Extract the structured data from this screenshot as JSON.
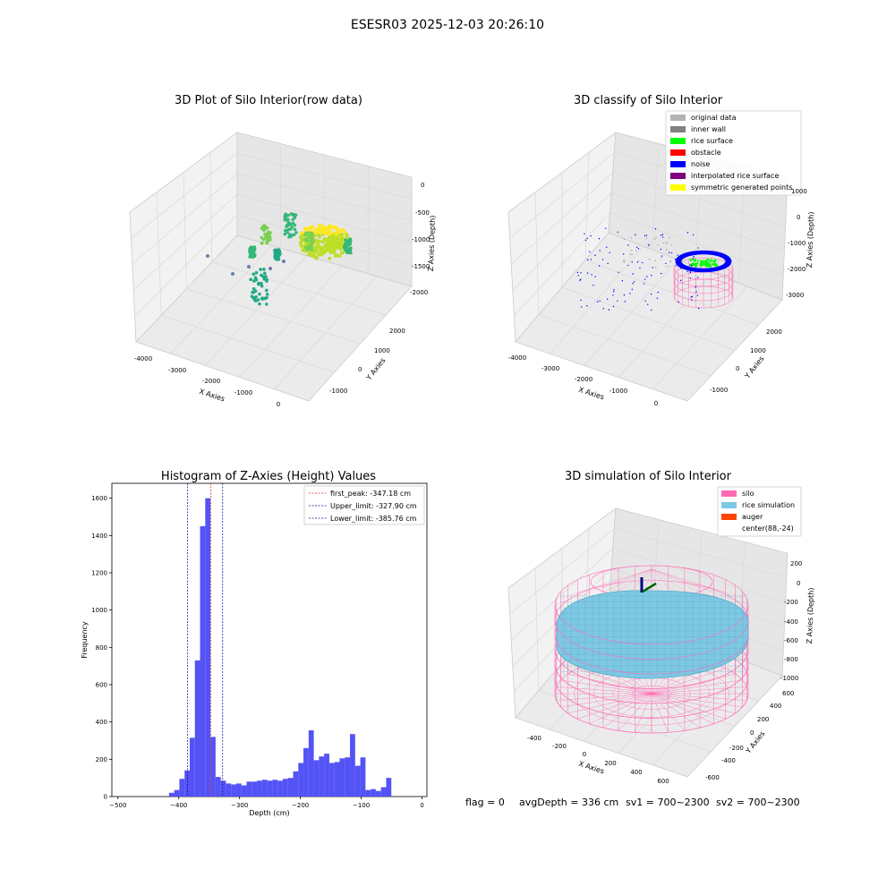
{
  "figure": {
    "suptitle": "ESESR03 2025-12-03 20:26:10",
    "status": {
      "flag": "flag = 0",
      "avg_depth": "avgDepth = 336 cm",
      "sv1": "sv1 = 700~2300",
      "sv2": "sv2 = 700~2300"
    }
  },
  "colors": {
    "hist_bar": "#4a4af5",
    "first_peak": "#e03030",
    "limit_lines": "#1a1aa0",
    "pane": "#f2f2f2",
    "grid": "#d9d9d9",
    "silo": "#ff69b4",
    "rice": "#7ec8e3",
    "auger": "#ff4500"
  },
  "chart_data": [
    {
      "type": "scatter3d",
      "title": "3D Plot of Silo Interior(row data)",
      "xlabel": "X Axies",
      "ylabel": "Y Axies",
      "zlabel": "Z Axies (Depth)",
      "xticks": [
        "-4000",
        "-3000",
        "-2000",
        "-1000",
        "0"
      ],
      "yticks": [
        "-1000",
        "0",
        "1000",
        "2000"
      ],
      "zticks": [
        "0",
        "-500",
        "-1000",
        "-1500",
        "-2000"
      ],
      "colormap": "viridis"
    },
    {
      "type": "scatter3d",
      "title": "3D classify of Silo Interior",
      "xlabel": "X Axies",
      "ylabel": "Y Axies",
      "zlabel": "Z Axies (Depth)",
      "xticks": [
        "-4000",
        "-3000",
        "-2000",
        "-1000",
        "0"
      ],
      "yticks": [
        "-1000",
        "0",
        "1000",
        "2000"
      ],
      "zticks": [
        "1000",
        "0",
        "-1000",
        "-2000",
        "-3000"
      ],
      "legend_position": "top-right",
      "legend": [
        {
          "label": "original data",
          "color": "#b3b3b3"
        },
        {
          "label": "inner wall",
          "color": "#808080"
        },
        {
          "label": "rice surface",
          "color": "#00ff00"
        },
        {
          "label": "obstacle",
          "color": "#ff0000"
        },
        {
          "label": "noise",
          "color": "#0000ff"
        },
        {
          "label": "interpolated rice surface",
          "color": "#800080"
        },
        {
          "label": "symmetric generated points",
          "color": "#ffff00"
        }
      ]
    },
    {
      "type": "bar",
      "title": "Histogram of Z-Axies (Height) Values",
      "xlabel": "Depth (cm)",
      "ylabel": "Frequency",
      "xlim": [
        -510,
        8
      ],
      "ylim": [
        0,
        1680
      ],
      "xticks": [
        -500,
        -400,
        -300,
        -200,
        -100,
        0
      ],
      "yticks": [
        0,
        200,
        400,
        600,
        800,
        1000,
        1200,
        1400,
        1600
      ],
      "bin_width": 8.5,
      "bins": [
        {
          "x": -416,
          "value": 20
        },
        {
          "x": -407.5,
          "value": 35
        },
        {
          "x": -399,
          "value": 95
        },
        {
          "x": -390.5,
          "value": 140
        },
        {
          "x": -382,
          "value": 315
        },
        {
          "x": -373.5,
          "value": 730
        },
        {
          "x": -365,
          "value": 1450
        },
        {
          "x": -356.5,
          "value": 1600
        },
        {
          "x": -348,
          "value": 320
        },
        {
          "x": -339.5,
          "value": 105
        },
        {
          "x": -331,
          "value": 85
        },
        {
          "x": -322.5,
          "value": 70
        },
        {
          "x": -314,
          "value": 65
        },
        {
          "x": -305.5,
          "value": 70
        },
        {
          "x": -297,
          "value": 60
        },
        {
          "x": -288.5,
          "value": 80
        },
        {
          "x": -280,
          "value": 80
        },
        {
          "x": -271.5,
          "value": 85
        },
        {
          "x": -263,
          "value": 90
        },
        {
          "x": -254.5,
          "value": 85
        },
        {
          "x": -246,
          "value": 90
        },
        {
          "x": -237.5,
          "value": 85
        },
        {
          "x": -229,
          "value": 95
        },
        {
          "x": -220.5,
          "value": 100
        },
        {
          "x": -212,
          "value": 135
        },
        {
          "x": -203.5,
          "value": 180
        },
        {
          "x": -195,
          "value": 260
        },
        {
          "x": -186.5,
          "value": 355
        },
        {
          "x": -178,
          "value": 195
        },
        {
          "x": -169.5,
          "value": 215
        },
        {
          "x": -161,
          "value": 230
        },
        {
          "x": -152.5,
          "value": 180
        },
        {
          "x": -144,
          "value": 185
        },
        {
          "x": -135.5,
          "value": 205
        },
        {
          "x": -127,
          "value": 210
        },
        {
          "x": -118.5,
          "value": 335
        },
        {
          "x": -110,
          "value": 165
        },
        {
          "x": -101.5,
          "value": 210
        },
        {
          "x": -93,
          "value": 35
        },
        {
          "x": -84.5,
          "value": 40
        },
        {
          "x": -76,
          "value": 30
        },
        {
          "x": -67.5,
          "value": 50
        },
        {
          "x": -59,
          "value": 100
        }
      ],
      "vlines": [
        {
          "x": -347.18,
          "label": "first_peak: -347.18 cm",
          "color": "#e03030"
        },
        {
          "x": -327.9,
          "label": "Upper_limit: -327.90 cm",
          "color": "#1a1aa0"
        },
        {
          "x": -385.76,
          "label": "Lower_limit: -385.76 cm",
          "color": "#1a1aa0"
        }
      ],
      "legend_position": "top-right"
    },
    {
      "type": "surface3d",
      "title": "3D simulation of Silo Interior",
      "xlabel": "X Axies",
      "ylabel": "Y Axies",
      "zlabel": "Z Axies (Depth)",
      "xticks": [
        "-400",
        "-200",
        "0",
        "200",
        "400",
        "600"
      ],
      "yticks": [
        "-600",
        "-400",
        "-200",
        "0",
        "200",
        "400",
        "600"
      ],
      "zticks": [
        "200",
        "0",
        "-200",
        "-400",
        "-600",
        "-800",
        "-1000"
      ],
      "legend_position": "top-right",
      "legend": [
        {
          "label": "silo",
          "color": "#ff69b4"
        },
        {
          "label": "rice simulation",
          "color": "#7ec8e3"
        },
        {
          "label": "auger",
          "color": "#ff4500"
        },
        {
          "label": "center(88,-24)",
          "color": ""
        }
      ]
    }
  ]
}
